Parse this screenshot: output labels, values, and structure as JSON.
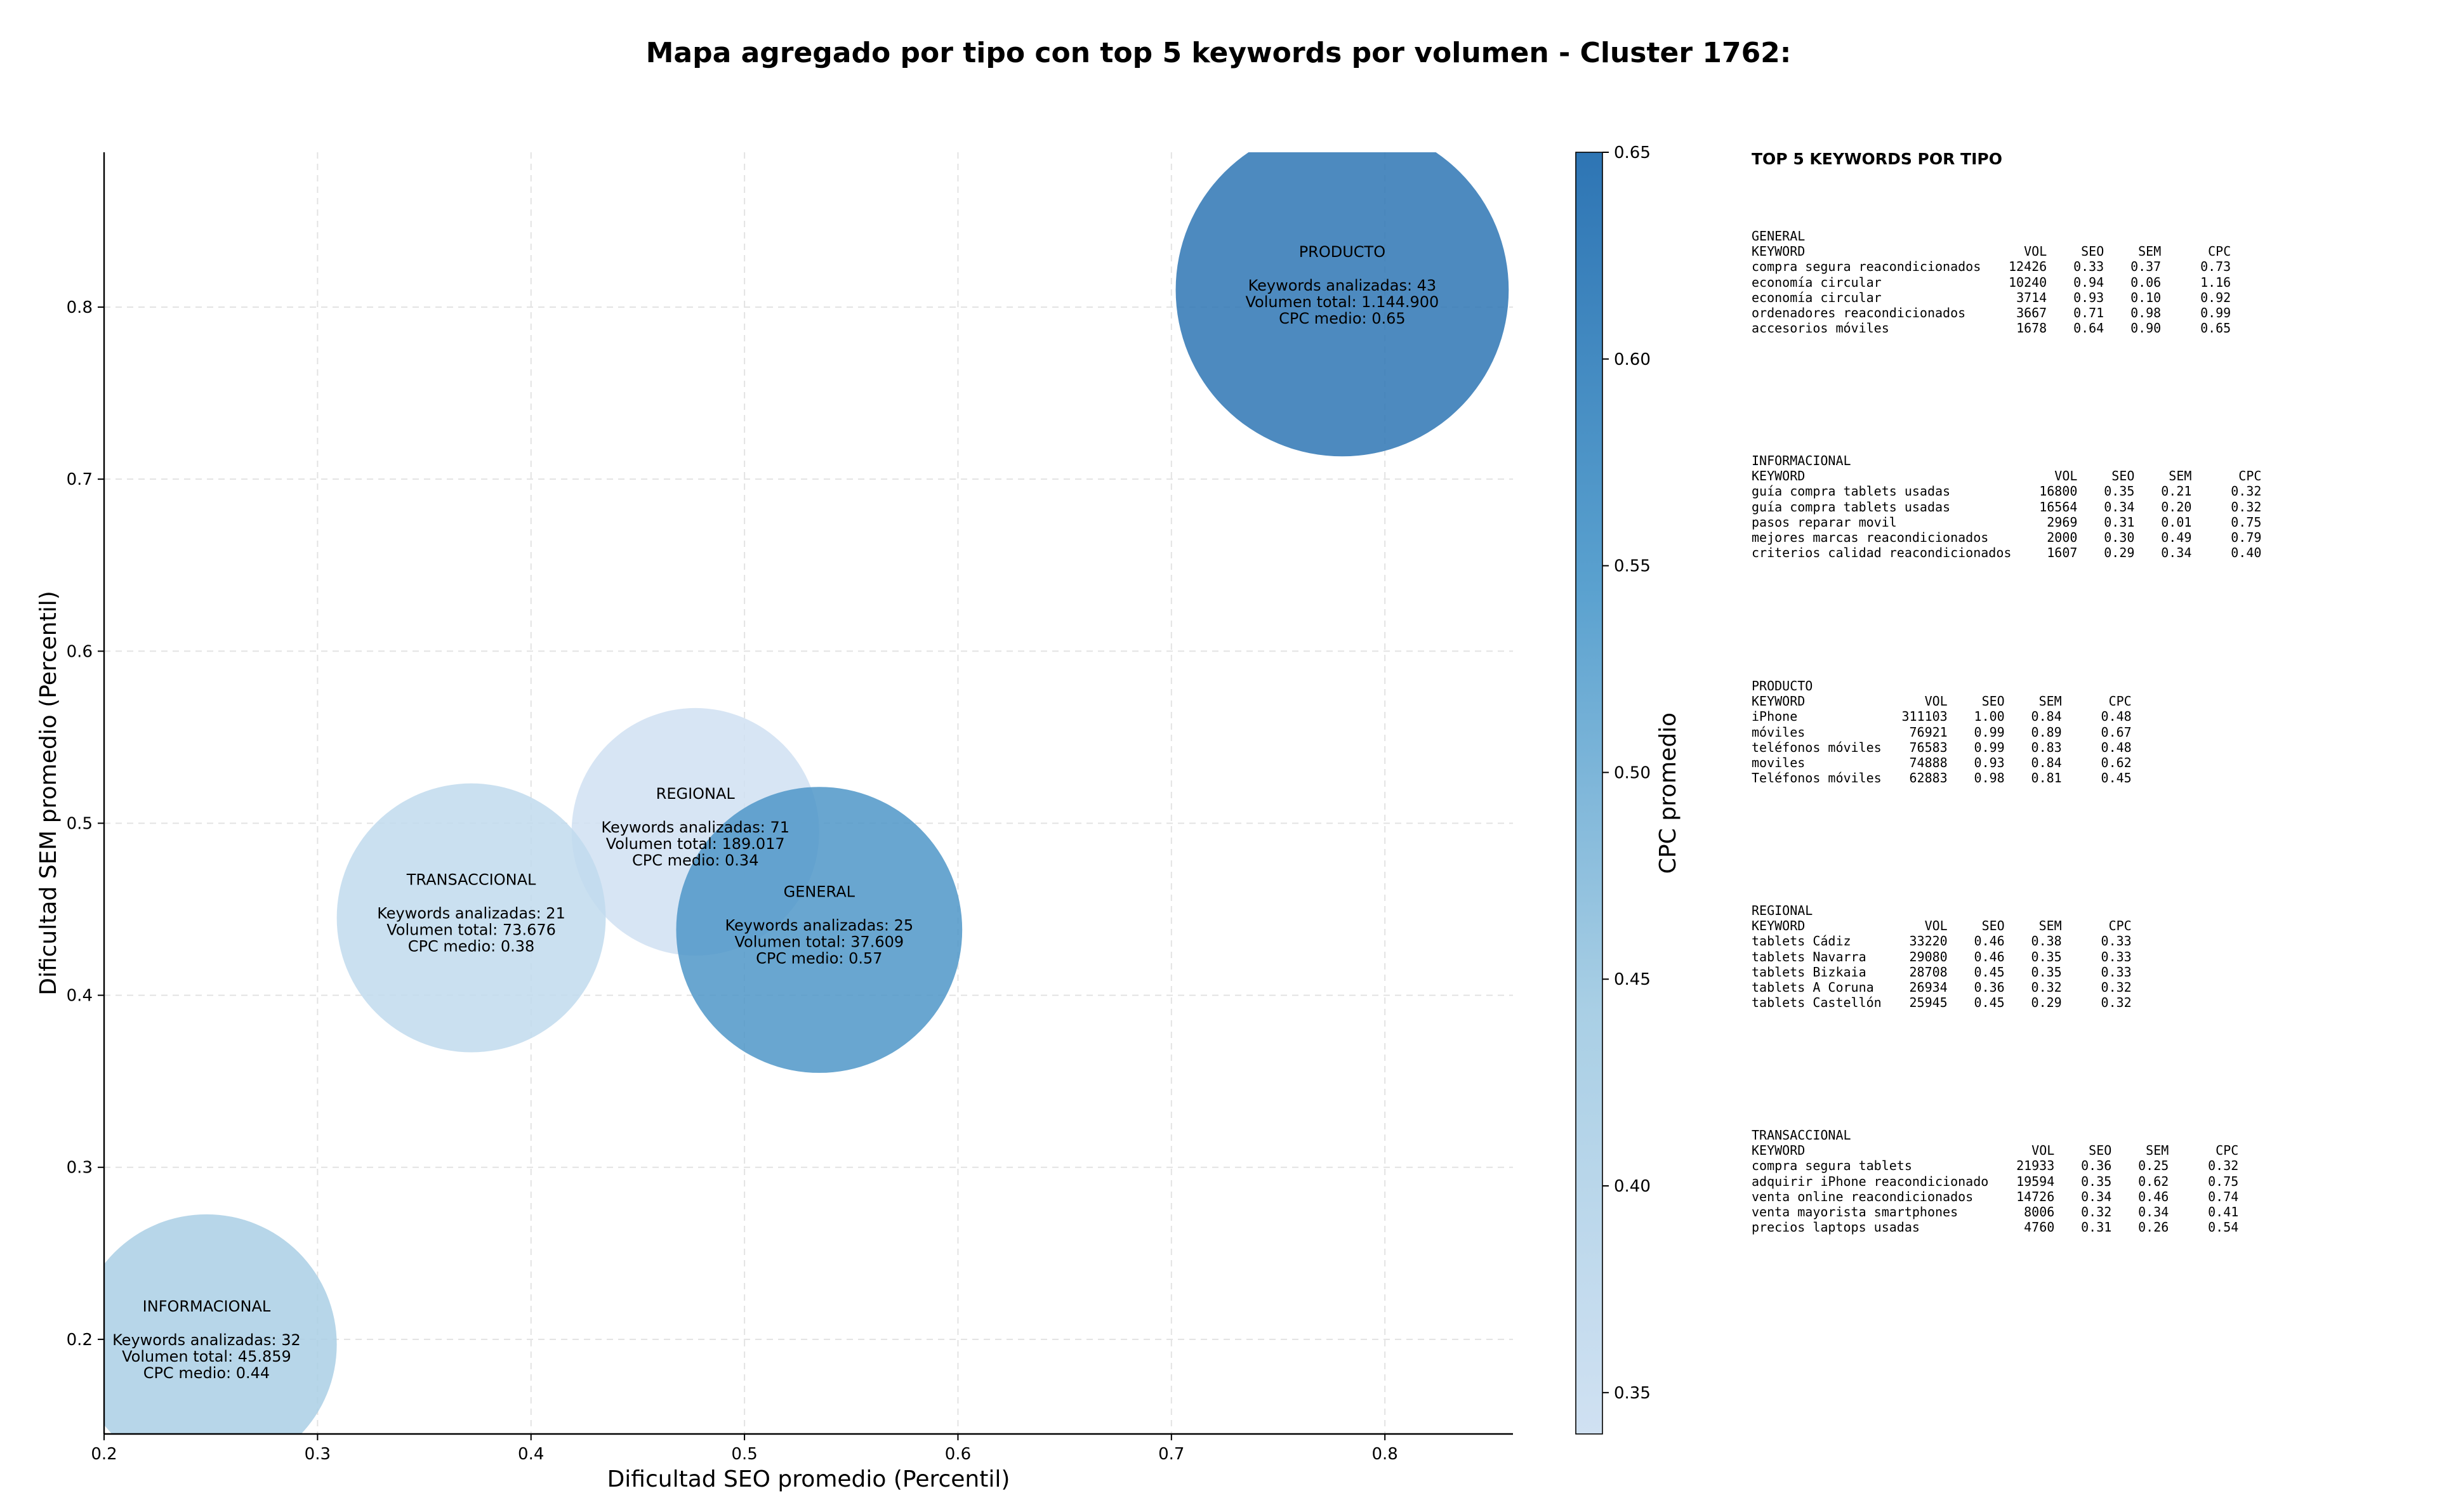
{
  "title": "Mapa agregado por tipo con top 5 keywords por volumen - Cluster 1762:",
  "chart_data": {
    "type": "scatter",
    "subtype": "bubble",
    "xlabel": "Dificultad SEO promedio (Percentil)",
    "ylabel": "Dificultad SEM promedio (Percentil)",
    "xlim": [
      0.2,
      0.86
    ],
    "ylim": [
      0.145,
      0.89
    ],
    "x_ticks": [
      "0.2",
      "0.3",
      "0.4",
      "0.5",
      "0.6",
      "0.7",
      "0.8"
    ],
    "y_ticks": [
      "0.2",
      "0.3",
      "0.4",
      "0.5",
      "0.6",
      "0.7",
      "0.8"
    ],
    "grid": true,
    "colorbar": {
      "label": "CPC promedio",
      "range": [
        0.34,
        0.65
      ],
      "ticks": [
        "0.35",
        "0.40",
        "0.45",
        "0.50",
        "0.55",
        "0.60",
        "0.65"
      ],
      "colormap": "Blues"
    },
    "bubble_label_prefixes": {
      "keywords": "Keywords analizadas: ",
      "volume": "Volumen total: ",
      "cpc": "CPC medio: "
    },
    "bubbles": [
      {
        "name": "PRODUCTO",
        "x": 0.78,
        "y": 0.81,
        "radius_units": 0.078,
        "keywords": 43,
        "volume": "1.144.900",
        "cpc": 0.65,
        "cpc_label": "0.65"
      },
      {
        "name": "REGIONAL",
        "x": 0.477,
        "y": 0.495,
        "radius_units": 0.058,
        "keywords": 71,
        "volume": "189.017",
        "cpc": 0.34,
        "cpc_label": "0.34"
      },
      {
        "name": "TRANSACCIONAL",
        "x": 0.372,
        "y": 0.445,
        "radius_units": 0.063,
        "keywords": 21,
        "volume": "73.676",
        "cpc": 0.38,
        "cpc_label": "0.38"
      },
      {
        "name": "GENERAL",
        "x": 0.535,
        "y": 0.438,
        "radius_units": 0.067,
        "keywords": 25,
        "volume": "37.609",
        "cpc": 0.57,
        "cpc_label": "0.57"
      },
      {
        "name": "INFORMACIONAL",
        "x": 0.248,
        "y": 0.197,
        "radius_units": 0.061,
        "keywords": 32,
        "volume": "45.859",
        "cpc": 0.44,
        "cpc_label": "0.44"
      }
    ]
  },
  "panel": {
    "title": "TOP 5 KEYWORDS POR TIPO",
    "headers": {
      "keyword": "KEYWORD",
      "vol": "VOL",
      "seo": "SEO",
      "sem": "SEM",
      "cpc": "CPC"
    },
    "groups": [
      {
        "name": "GENERAL",
        "rows": [
          [
            "compra segura reacondicionados",
            "12426",
            "0.33",
            "0.37",
            "0.73"
          ],
          [
            "economía circular",
            "10240",
            "0.94",
            "0.06",
            "1.16"
          ],
          [
            "economía circular",
            "3714",
            "0.93",
            "0.10",
            "0.92"
          ],
          [
            "ordenadores reacondicionados",
            "3667",
            "0.71",
            "0.98",
            "0.99"
          ],
          [
            "accesorios móviles",
            "1678",
            "0.64",
            "0.90",
            "0.65"
          ]
        ]
      },
      {
        "name": "INFORMACIONAL",
        "rows": [
          [
            "guía compra tablets usadas",
            "16800",
            "0.35",
            "0.21",
            "0.32"
          ],
          [
            "guía compra tablets usadas",
            "16564",
            "0.34",
            "0.20",
            "0.32"
          ],
          [
            "pasos reparar movil",
            "2969",
            "0.31",
            "0.01",
            "0.75"
          ],
          [
            "mejores marcas reacondicionados",
            "2000",
            "0.30",
            "0.49",
            "0.79"
          ],
          [
            "criterios calidad reacondicionados",
            "1607",
            "0.29",
            "0.34",
            "0.40"
          ]
        ]
      },
      {
        "name": "PRODUCTO",
        "rows": [
          [
            "iPhone",
            "311103",
            "1.00",
            "0.84",
            "0.48"
          ],
          [
            "móviles",
            "76921",
            "0.99",
            "0.89",
            "0.67"
          ],
          [
            "teléfonos móviles",
            "76583",
            "0.99",
            "0.83",
            "0.48"
          ],
          [
            "moviles",
            "74888",
            "0.93",
            "0.84",
            "0.62"
          ],
          [
            "Teléfonos móviles",
            "62883",
            "0.98",
            "0.81",
            "0.45"
          ]
        ]
      },
      {
        "name": "REGIONAL",
        "rows": [
          [
            "tablets Cádiz",
            "33220",
            "0.46",
            "0.38",
            "0.33"
          ],
          [
            "tablets Navarra",
            "29080",
            "0.46",
            "0.35",
            "0.33"
          ],
          [
            "tablets Bizkaia",
            "28708",
            "0.45",
            "0.35",
            "0.33"
          ],
          [
            "tablets A Coruna",
            "26934",
            "0.36",
            "0.32",
            "0.32"
          ],
          [
            "tablets Castellón",
            "25945",
            "0.45",
            "0.29",
            "0.32"
          ]
        ]
      },
      {
        "name": "TRANSACCIONAL",
        "rows": [
          [
            "compra segura tablets",
            "21933",
            "0.36",
            "0.25",
            "0.32"
          ],
          [
            "adquirir iPhone reacondicionado",
            "19594",
            "0.35",
            "0.62",
            "0.75"
          ],
          [
            "venta online reacondicionados",
            "14726",
            "0.34",
            "0.46",
            "0.74"
          ],
          [
            "venta mayorista smartphones",
            "8006",
            "0.32",
            "0.34",
            "0.41"
          ],
          [
            "precios laptops usadas",
            "4760",
            "0.31",
            "0.26",
            "0.54"
          ]
        ]
      }
    ]
  }
}
